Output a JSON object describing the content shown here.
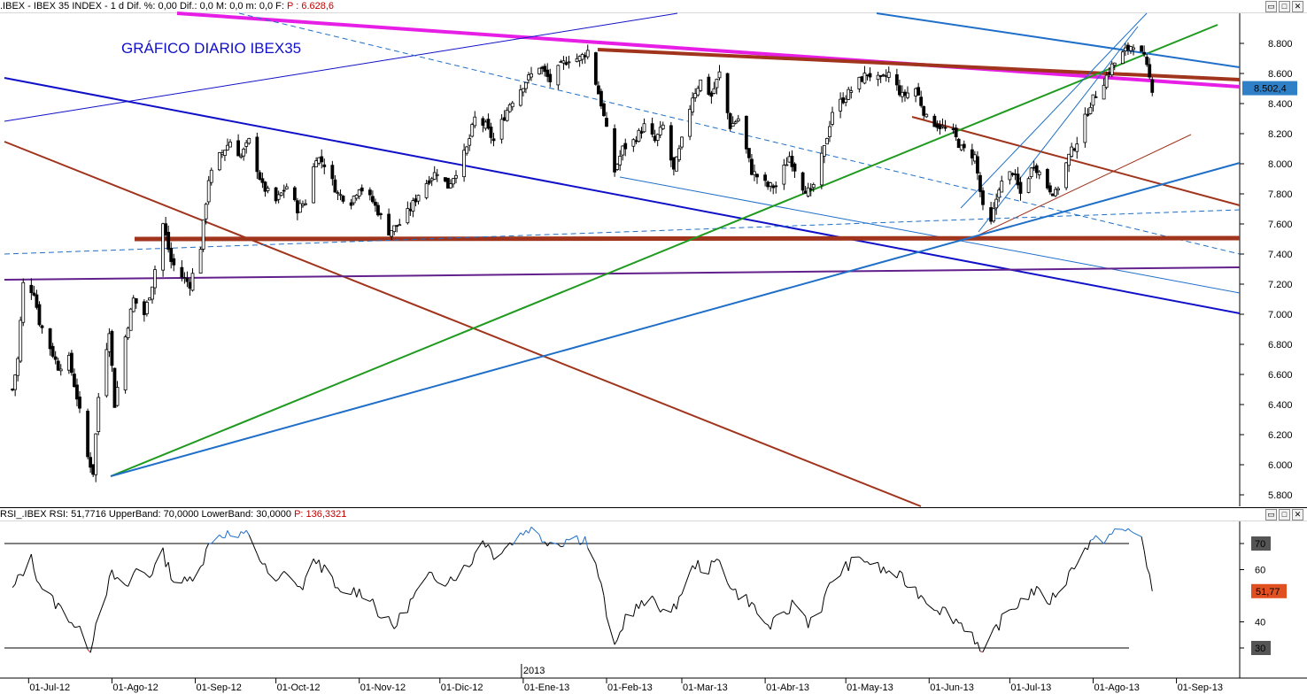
{
  "price_header": {
    "symbol": ".IBEX - IBEX 35 INDEX - 1 d",
    "stats": "Dif. %: 0,00  Dif.: 0,0  M: 0,0  m: 0,0  F:",
    "pointer": "P : 6.628,6"
  },
  "rsi_header": {
    "label": "RSI_.IBEX RSI: 51,7716  UpperBand: 70,0000  LowerBand: 30,0000",
    "pointer": "P: 136,3321"
  },
  "window_buttons": {
    "minimize": "▭",
    "restore": "□",
    "close": "✕"
  },
  "chart_data": [
    {
      "type": "candlestick",
      "title": "GRÁFICO DIARIO IBEX35",
      "y_ticks": [
        "8.800",
        "8.600",
        "8.400",
        "8.200",
        "8.000",
        "7.800",
        "7.600",
        "7.400",
        "7.200",
        "7.000",
        "6.800",
        "6.600",
        "6.400",
        "6.200",
        "6.000",
        "5.800"
      ],
      "ylim": [
        5750,
        8950
      ],
      "last_value_label": "8.502,4",
      "last_value": 8502.4,
      "x_labels": [
        "01-Jul-12",
        "01-Ago-12",
        "01-Sep-12",
        "01-Oct-12",
        "01-Nov-12",
        "01-Dic-12",
        "01-Ene-13",
        "01-Feb-13",
        "01-Mar-13",
        "01-Abr-13",
        "01-May-13",
        "01-Jun-13",
        "01-Jul-13",
        "01-Ago-13",
        "01-Sep-13"
      ],
      "year_marker": "2013",
      "colors": {
        "candle": "#000000",
        "magenta": "#e61ee6",
        "brown": "#a0341c",
        "navy": "#1010c8",
        "blue": "#1f6fc8",
        "green": "#1f9a1f",
        "purple": "#62208c",
        "dark_red": "#a02010"
      },
      "close_path": [
        {
          "d": "2012-06-25",
          "c": 6500
        },
        {
          "d": "2012-06-27",
          "c": 6700
        },
        {
          "d": "2012-06-29",
          "c": 7200
        },
        {
          "d": "2012-07-03",
          "c": 7150
        },
        {
          "d": "2012-07-05",
          "c": 6950
        },
        {
          "d": "2012-07-09",
          "c": 6780
        },
        {
          "d": "2012-07-12",
          "c": 6650
        },
        {
          "d": "2012-07-16",
          "c": 6700
        },
        {
          "d": "2012-07-19",
          "c": 6450
        },
        {
          "d": "2012-07-23",
          "c": 6050
        },
        {
          "d": "2012-07-25",
          "c": 5950
        },
        {
          "d": "2012-07-27",
          "c": 6450
        },
        {
          "d": "2012-07-31",
          "c": 6900
        },
        {
          "d": "2012-08-02",
          "c": 6400
        },
        {
          "d": "2012-08-06",
          "c": 6850
        },
        {
          "d": "2012-08-09",
          "c": 7100
        },
        {
          "d": "2012-08-13",
          "c": 7000
        },
        {
          "d": "2012-08-16",
          "c": 7200
        },
        {
          "d": "2012-08-20",
          "c": 7600
        },
        {
          "d": "2012-08-23",
          "c": 7350
        },
        {
          "d": "2012-08-27",
          "c": 7250
        },
        {
          "d": "2012-08-30",
          "c": 7200
        },
        {
          "d": "2012-09-03",
          "c": 7450
        },
        {
          "d": "2012-09-06",
          "c": 7900
        },
        {
          "d": "2012-09-10",
          "c": 8050
        },
        {
          "d": "2012-09-14",
          "c": 8150
        },
        {
          "d": "2012-09-18",
          "c": 8050
        },
        {
          "d": "2012-09-21",
          "c": 8150
        },
        {
          "d": "2012-09-26",
          "c": 7850
        },
        {
          "d": "2012-10-01",
          "c": 7750
        },
        {
          "d": "2012-10-05",
          "c": 7850
        },
        {
          "d": "2012-10-09",
          "c": 7700
        },
        {
          "d": "2012-10-12",
          "c": 7750
        },
        {
          "d": "2012-10-16",
          "c": 8050
        },
        {
          "d": "2012-10-19",
          "c": 8000
        },
        {
          "d": "2012-10-24",
          "c": 7800
        },
        {
          "d": "2012-10-29",
          "c": 7750
        },
        {
          "d": "2012-11-01",
          "c": 7850
        },
        {
          "d": "2012-11-06",
          "c": 7750
        },
        {
          "d": "2012-11-12",
          "c": 7550
        },
        {
          "d": "2012-11-16",
          "c": 7600
        },
        {
          "d": "2012-11-20",
          "c": 7700
        },
        {
          "d": "2012-11-23",
          "c": 7800
        },
        {
          "d": "2012-11-27",
          "c": 7900
        },
        {
          "d": "2012-11-30",
          "c": 7950
        },
        {
          "d": "2012-12-04",
          "c": 7850
        },
        {
          "d": "2012-12-07",
          "c": 7950
        },
        {
          "d": "2012-12-11",
          "c": 8100
        },
        {
          "d": "2012-12-14",
          "c": 8300
        },
        {
          "d": "2012-12-18",
          "c": 8250
        },
        {
          "d": "2012-12-21",
          "c": 8150
        },
        {
          "d": "2012-12-27",
          "c": 8400
        },
        {
          "d": "2013-01-02",
          "c": 8550
        },
        {
          "d": "2013-01-07",
          "c": 8650
        },
        {
          "d": "2013-01-11",
          "c": 8550
        },
        {
          "d": "2013-01-15",
          "c": 8650
        },
        {
          "d": "2013-01-18",
          "c": 8700
        },
        {
          "d": "2013-01-22",
          "c": 8700
        },
        {
          "d": "2013-01-25",
          "c": 8750
        },
        {
          "d": "2013-01-30",
          "c": 8400
        },
        {
          "d": "2013-02-04",
          "c": 7950
        },
        {
          "d": "2013-02-07",
          "c": 8100
        },
        {
          "d": "2013-02-11",
          "c": 8150
        },
        {
          "d": "2013-02-15",
          "c": 8250
        },
        {
          "d": "2013-02-19",
          "c": 8150
        },
        {
          "d": "2013-02-22",
          "c": 8250
        },
        {
          "d": "2013-02-26",
          "c": 7950
        },
        {
          "d": "2013-03-01",
          "c": 8150
        },
        {
          "d": "2013-03-05",
          "c": 8450
        },
        {
          "d": "2013-03-08",
          "c": 8550
        },
        {
          "d": "2013-03-12",
          "c": 8450
        },
        {
          "d": "2013-03-15",
          "c": 8600
        },
        {
          "d": "2013-03-19",
          "c": 8250
        },
        {
          "d": "2013-03-22",
          "c": 8300
        },
        {
          "d": "2013-03-27",
          "c": 7950
        },
        {
          "d": "2013-04-02",
          "c": 7850
        },
        {
          "d": "2013-04-05",
          "c": 7850
        },
        {
          "d": "2013-04-10",
          "c": 8050
        },
        {
          "d": "2013-04-15",
          "c": 7850
        },
        {
          "d": "2013-04-18",
          "c": 7800
        },
        {
          "d": "2013-04-23",
          "c": 8100
        },
        {
          "d": "2013-04-26",
          "c": 8350
        },
        {
          "d": "2013-05-01",
          "c": 8450
        },
        {
          "d": "2013-05-06",
          "c": 8550
        },
        {
          "d": "2013-05-09",
          "c": 8600
        },
        {
          "d": "2013-05-14",
          "c": 8550
        },
        {
          "d": "2013-05-17",
          "c": 8600
        },
        {
          "d": "2013-05-22",
          "c": 8450
        },
        {
          "d": "2013-05-27",
          "c": 8500
        },
        {
          "d": "2013-05-31",
          "c": 8300
        },
        {
          "d": "2013-06-05",
          "c": 8250
        },
        {
          "d": "2013-06-10",
          "c": 8200
        },
        {
          "d": "2013-06-13",
          "c": 8100
        },
        {
          "d": "2013-06-18",
          "c": 8050
        },
        {
          "d": "2013-06-21",
          "c": 7700
        },
        {
          "d": "2013-06-24",
          "c": 7600
        },
        {
          "d": "2013-06-27",
          "c": 7850
        },
        {
          "d": "2013-07-02",
          "c": 7950
        },
        {
          "d": "2013-07-05",
          "c": 7800
        },
        {
          "d": "2013-07-10",
          "c": 8000
        },
        {
          "d": "2013-07-15",
          "c": 7850
        },
        {
          "d": "2013-07-18",
          "c": 7800
        },
        {
          "d": "2013-07-23",
          "c": 8050
        },
        {
          "d": "2013-07-26",
          "c": 8150
        },
        {
          "d": "2013-07-31",
          "c": 8400
        },
        {
          "d": "2013-08-05",
          "c": 8550
        },
        {
          "d": "2013-08-08",
          "c": 8650
        },
        {
          "d": "2013-08-13",
          "c": 8750
        },
        {
          "d": "2013-08-16",
          "c": 8800
        },
        {
          "d": "2013-08-20",
          "c": 8700
        },
        {
          "d": "2013-08-23",
          "c": 8500
        }
      ]
    },
    {
      "type": "line",
      "name": "RSI",
      "y_ticks": [
        "70",
        "60",
        "40",
        "30"
      ],
      "ylim": [
        18,
        82
      ],
      "upper_band": 70,
      "lower_band": 30,
      "last_value_label": "51,77",
      "last_value": 51.77,
      "colors": {
        "line": "#000000",
        "overbought": "#1f6fc8",
        "oversold": "#d82020",
        "last_value_bg": "#e05020"
      },
      "path": [
        {
          "d": "2012-06-25",
          "v": 52
        },
        {
          "d": "2012-06-28",
          "v": 58
        },
        {
          "d": "2012-07-02",
          "v": 64
        },
        {
          "d": "2012-07-05",
          "v": 55
        },
        {
          "d": "2012-07-10",
          "v": 48
        },
        {
          "d": "2012-07-16",
          "v": 42
        },
        {
          "d": "2012-07-20",
          "v": 36
        },
        {
          "d": "2012-07-24",
          "v": 30
        },
        {
          "d": "2012-07-27",
          "v": 44
        },
        {
          "d": "2012-08-01",
          "v": 58
        },
        {
          "d": "2012-08-06",
          "v": 52
        },
        {
          "d": "2012-08-10",
          "v": 60
        },
        {
          "d": "2012-08-15",
          "v": 58
        },
        {
          "d": "2012-08-20",
          "v": 66
        },
        {
          "d": "2012-08-24",
          "v": 56
        },
        {
          "d": "2012-08-29",
          "v": 55
        },
        {
          "d": "2012-09-04",
          "v": 64
        },
        {
          "d": "2012-09-07",
          "v": 72
        },
        {
          "d": "2012-09-12",
          "v": 74
        },
        {
          "d": "2012-09-17",
          "v": 72
        },
        {
          "d": "2012-09-21",
          "v": 74
        },
        {
          "d": "2012-09-26",
          "v": 62
        },
        {
          "d": "2012-10-01",
          "v": 54
        },
        {
          "d": "2012-10-05",
          "v": 60
        },
        {
          "d": "2012-10-10",
          "v": 52
        },
        {
          "d": "2012-10-16",
          "v": 64
        },
        {
          "d": "2012-10-19",
          "v": 60
        },
        {
          "d": "2012-10-25",
          "v": 50
        },
        {
          "d": "2012-10-30",
          "v": 52
        },
        {
          "d": "2012-11-05",
          "v": 50
        },
        {
          "d": "2012-11-09",
          "v": 42
        },
        {
          "d": "2012-11-14",
          "v": 38
        },
        {
          "d": "2012-11-19",
          "v": 46
        },
        {
          "d": "2012-11-23",
          "v": 52
        },
        {
          "d": "2012-11-28",
          "v": 58
        },
        {
          "d": "2012-12-03",
          "v": 56
        },
        {
          "d": "2012-12-07",
          "v": 58
        },
        {
          "d": "2012-12-12",
          "v": 62
        },
        {
          "d": "2012-12-17",
          "v": 72
        },
        {
          "d": "2012-12-21",
          "v": 66
        },
        {
          "d": "2012-12-27",
          "v": 70
        },
        {
          "d": "2013-01-03",
          "v": 76
        },
        {
          "d": "2013-01-08",
          "v": 72
        },
        {
          "d": "2013-01-14",
          "v": 70
        },
        {
          "d": "2013-01-18",
          "v": 72
        },
        {
          "d": "2013-01-24",
          "v": 72
        },
        {
          "d": "2013-01-29",
          "v": 58
        },
        {
          "d": "2013-02-04",
          "v": 29
        },
        {
          "d": "2013-02-08",
          "v": 42
        },
        {
          "d": "2013-02-13",
          "v": 46
        },
        {
          "d": "2013-02-19",
          "v": 48
        },
        {
          "d": "2013-02-25",
          "v": 42
        },
        {
          "d": "2013-03-01",
          "v": 52
        },
        {
          "d": "2013-03-06",
          "v": 62
        },
        {
          "d": "2013-03-11",
          "v": 60
        },
        {
          "d": "2013-03-15",
          "v": 64
        },
        {
          "d": "2013-03-20",
          "v": 52
        },
        {
          "d": "2013-03-26",
          "v": 48
        },
        {
          "d": "2013-04-02",
          "v": 38
        },
        {
          "d": "2013-04-08",
          "v": 42
        },
        {
          "d": "2013-04-12",
          "v": 48
        },
        {
          "d": "2013-04-17",
          "v": 40
        },
        {
          "d": "2013-04-22",
          "v": 46
        },
        {
          "d": "2013-04-26",
          "v": 56
        },
        {
          "d": "2013-05-02",
          "v": 62
        },
        {
          "d": "2013-05-08",
          "v": 64
        },
        {
          "d": "2013-05-14",
          "v": 60
        },
        {
          "d": "2013-05-20",
          "v": 58
        },
        {
          "d": "2013-05-27",
          "v": 52
        },
        {
          "d": "2013-06-03",
          "v": 46
        },
        {
          "d": "2013-06-07",
          "v": 44
        },
        {
          "d": "2013-06-12",
          "v": 40
        },
        {
          "d": "2013-06-17",
          "v": 36
        },
        {
          "d": "2013-06-21",
          "v": 26
        },
        {
          "d": "2013-06-26",
          "v": 38
        },
        {
          "d": "2013-07-01",
          "v": 44
        },
        {
          "d": "2013-07-05",
          "v": 48
        },
        {
          "d": "2013-07-10",
          "v": 52
        },
        {
          "d": "2013-07-16",
          "v": 48
        },
        {
          "d": "2013-07-22",
          "v": 56
        },
        {
          "d": "2013-07-26",
          "v": 64
        },
        {
          "d": "2013-07-31",
          "v": 70
        },
        {
          "d": "2013-08-05",
          "v": 72
        },
        {
          "d": "2013-08-09",
          "v": 74
        },
        {
          "d": "2013-08-14",
          "v": 75
        },
        {
          "d": "2013-08-19",
          "v": 74
        },
        {
          "d": "2013-08-21",
          "v": 60
        },
        {
          "d": "2013-08-23",
          "v": 51.77
        }
      ]
    }
  ]
}
